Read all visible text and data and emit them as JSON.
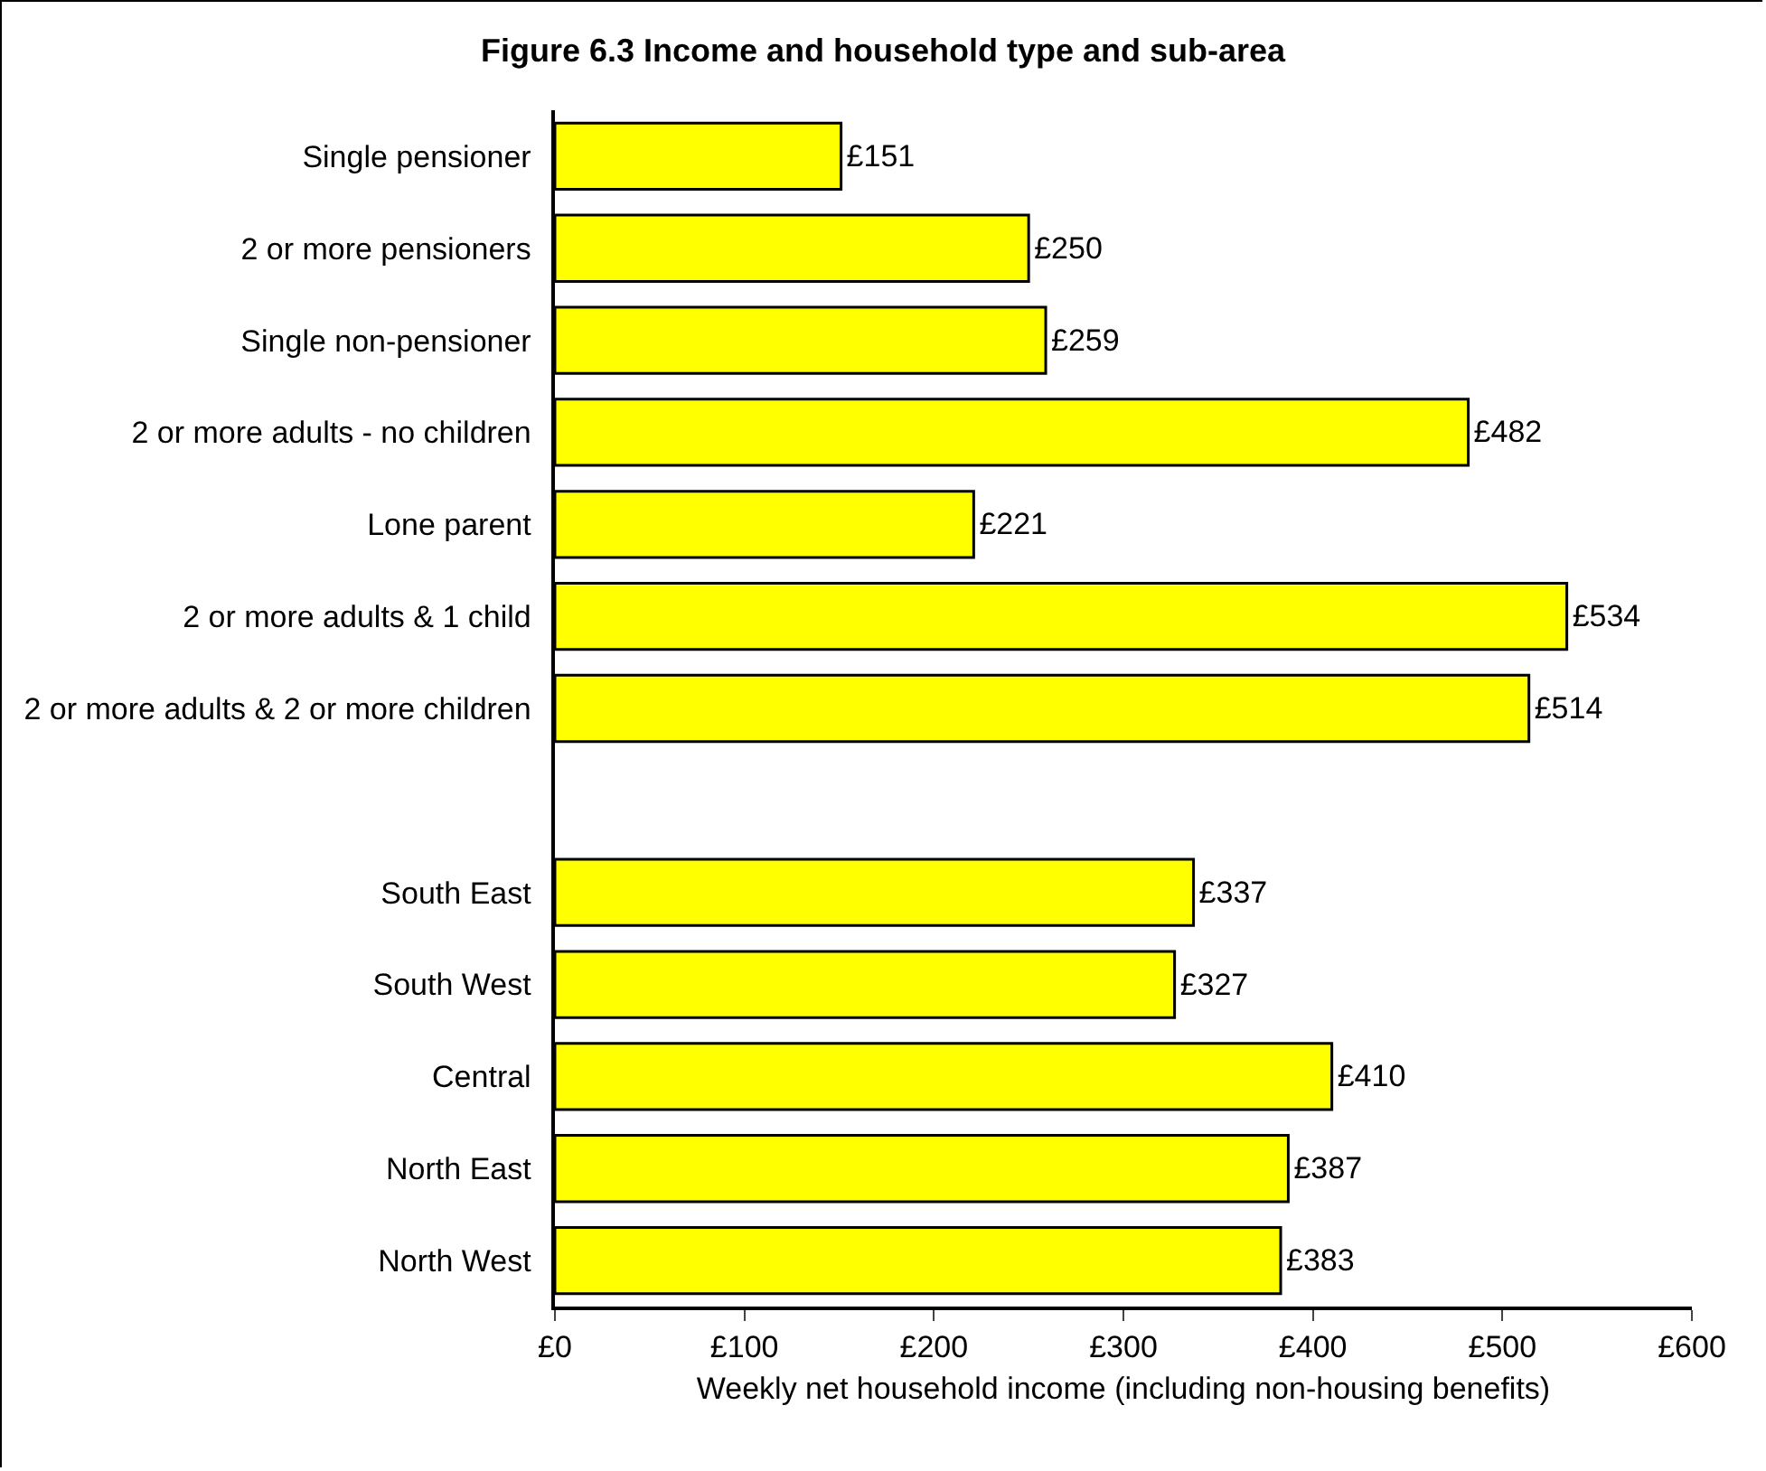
{
  "chart_data": {
    "type": "bar",
    "orientation": "horizontal",
    "title": "Figure 6.3 Income and household type and sub-area",
    "xlabel": "Weekly net household income (including non-housing benefits)",
    "categories": [
      "Single pensioner",
      "2 or more pensioners",
      "Single non-pensioner",
      "2 or more adults - no children",
      "Lone parent",
      "2 or more adults & 1 child",
      "2 or more adults & 2 or more children",
      null,
      "South East",
      "South West",
      "Central",
      "North East",
      "North West"
    ],
    "values": [
      151,
      250,
      259,
      482,
      221,
      534,
      514,
      null,
      337,
      327,
      410,
      387,
      383
    ],
    "value_labels": [
      "£151",
      "£250",
      "£259",
      "£482",
      "£221",
      "£534",
      "£514",
      null,
      "£337",
      "£327",
      "£410",
      "£387",
      "£383"
    ],
    "color": "#ffff00",
    "xlim": [
      0,
      600
    ],
    "xticks": [
      {
        "value": 0,
        "label": "£0"
      },
      {
        "value": 100,
        "label": "£100"
      },
      {
        "value": 200,
        "label": "£200"
      },
      {
        "value": 300,
        "label": "£300"
      },
      {
        "value": 400,
        "label": "£400"
      },
      {
        "value": 500,
        "label": "£500"
      },
      {
        "value": 600,
        "label": "£600"
      }
    ],
    "grid": false,
    "legend": false
  }
}
